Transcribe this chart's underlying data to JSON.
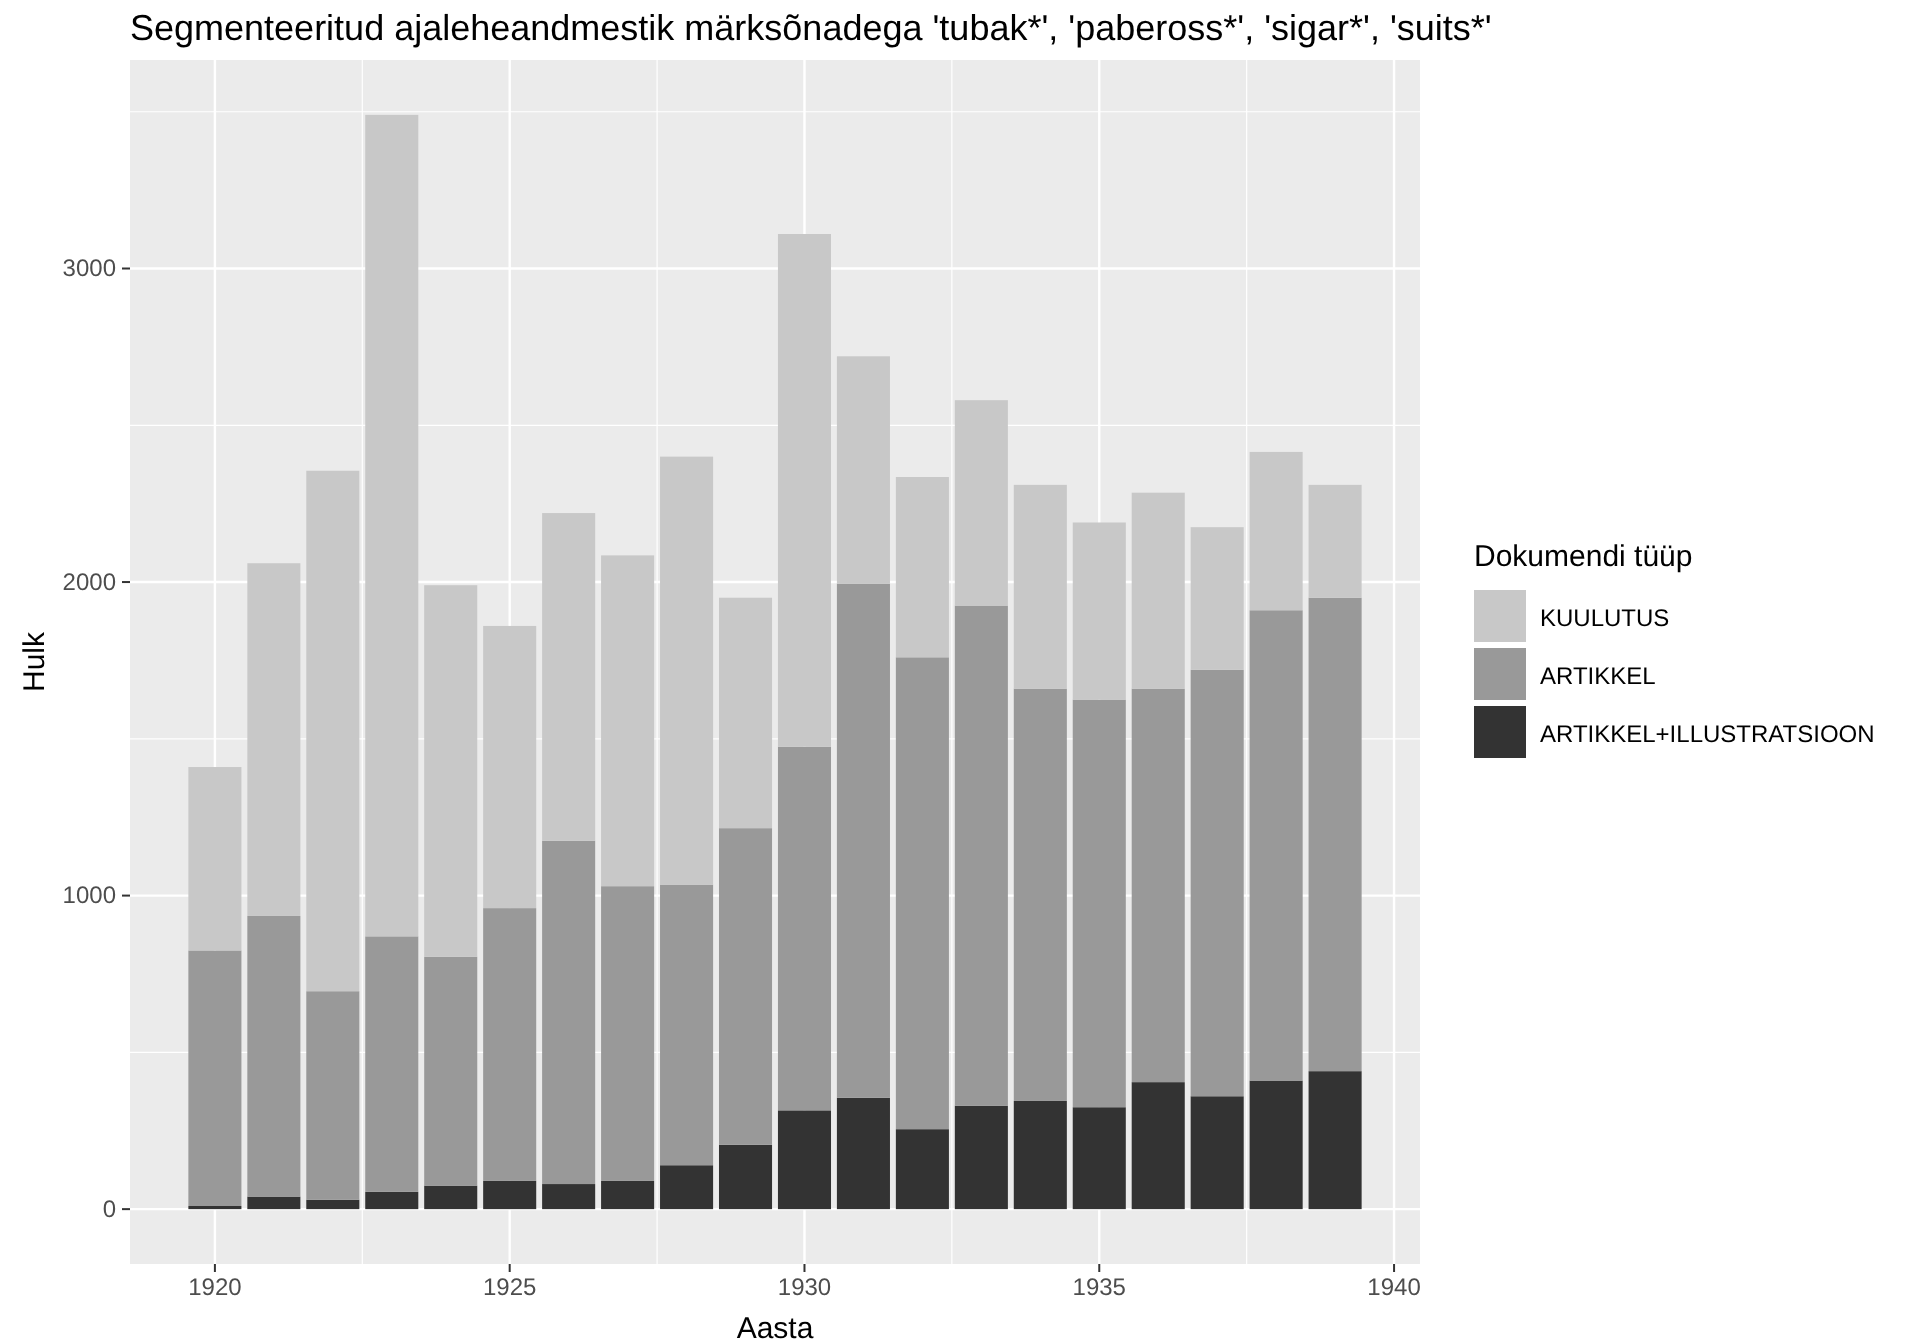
{
  "chart_data": {
    "type": "bar",
    "stacked": true,
    "title": "Segmenteeritud ajaleheandmestik märksõnadega 'tubak*', 'pabeross*', 'sigar*', 'suits*'",
    "xlabel": "Aasta",
    "ylabel": "Hulk",
    "legend_title": "Dokumendi tüüp",
    "legend": "right",
    "x": [
      1920,
      1921,
      1922,
      1923,
      1924,
      1925,
      1926,
      1927,
      1928,
      1929,
      1930,
      1931,
      1932,
      1933,
      1934,
      1935,
      1936,
      1937,
      1938,
      1939
    ],
    "series": [
      {
        "name": "ARTIKKEL+ILLUSTRATSIOON",
        "color": "#333333",
        "values": [
          10,
          40,
          30,
          55,
          75,
          90,
          80,
          90,
          140,
          205,
          315,
          355,
          255,
          330,
          345,
          325,
          405,
          360,
          410,
          440
        ]
      },
      {
        "name": "ARTIKKEL",
        "color": "#999999",
        "values": [
          815,
          895,
          665,
          815,
          730,
          870,
          1095,
          940,
          895,
          1010,
          1160,
          1640,
          1505,
          1595,
          1315,
          1300,
          1255,
          1360,
          1500,
          1510
        ]
      },
      {
        "name": "KUULUTUS",
        "color": "#c8c8c8",
        "values": [
          585,
          1125,
          1660,
          2620,
          1185,
          900,
          1045,
          1055,
          1365,
          735,
          1635,
          725,
          575,
          655,
          650,
          565,
          625,
          455,
          505,
          360
        ]
      }
    ],
    "xlim": [
      1918.56,
      1940.44
    ],
    "xticks": [
      1920,
      1925,
      1930,
      1935,
      1940
    ],
    "ylim": [
      -175,
      3665
    ],
    "yticks": [
      0,
      1000,
      2000,
      3000
    ],
    "grid": true
  }
}
